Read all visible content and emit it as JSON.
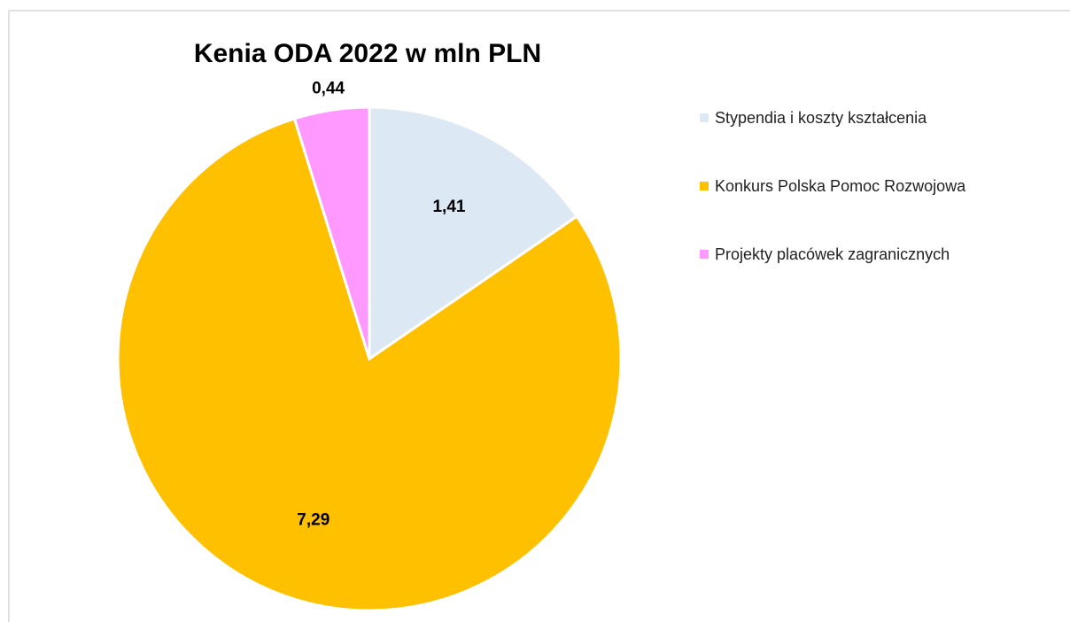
{
  "chart_data": {
    "type": "pie",
    "title": "Kenia ODA 2022 w mln PLN",
    "categories": [
      "Stypendia i koszty kształcenia",
      "Konkurs Polska Pomoc Rozwojowa",
      "Projekty placówek zagranicznych"
    ],
    "values": [
      1.41,
      7.29,
      0.44
    ],
    "value_labels": [
      "1,41",
      "7,29",
      "0,44"
    ],
    "colors": [
      "#dde8f5",
      "#ffc000",
      "#ff99ff"
    ],
    "legend": "right"
  }
}
